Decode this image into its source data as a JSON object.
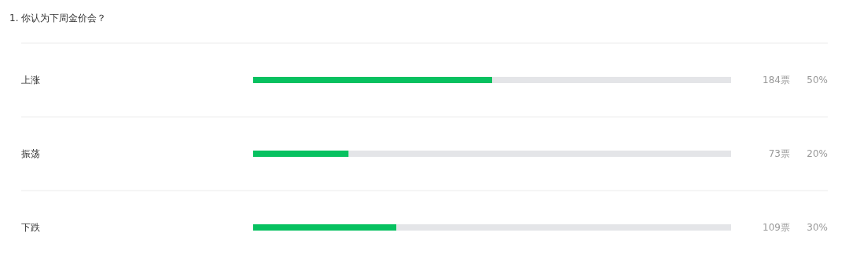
{
  "chart_data": {
    "type": "bar",
    "orientation": "horizontal",
    "stacked": true,
    "title": "1. 你认为下周金价会？",
    "categories": [
      "上涨",
      "振荡",
      "下跌"
    ],
    "series": [
      {
        "color": "#07c160",
        "values": [
          50,
          20,
          30
        ],
        "value_labels": [
          "50%",
          "20%",
          "30%"
        ]
      },
      {
        "color": "#e4e5e8",
        "values": [
          50,
          80,
          70
        ]
      }
    ],
    "xlim": [
      0,
      100
    ],
    "tick_labels": "y",
    "grid": "y",
    "legend": false,
    "annotations": [
      "184票",
      "73票",
      "109票"
    ]
  }
}
